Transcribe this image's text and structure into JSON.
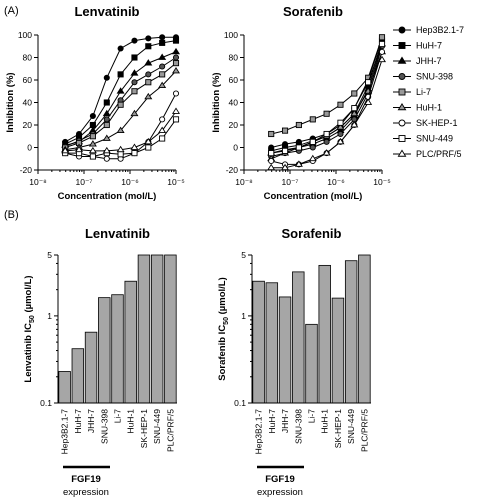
{
  "panels": {
    "a": "(A)",
    "b": "(B)"
  },
  "fgf19": {
    "label_line1": "FGF19",
    "label_line2": "expression"
  },
  "legend": {
    "items": [
      {
        "label": "Hep3B2.1-7",
        "marker": "circle",
        "fill": "#000000"
      },
      {
        "label": "HuH-7",
        "marker": "square",
        "fill": "#000000"
      },
      {
        "label": "JHH-7",
        "marker": "triangle",
        "fill": "#000000"
      },
      {
        "label": "SNU-398",
        "marker": "circle",
        "fill": "#555555"
      },
      {
        "label": "Li-7",
        "marker": "square",
        "fill": "#999999"
      },
      {
        "label": "HuH-1",
        "marker": "triangle",
        "fill": "#999999"
      },
      {
        "label": "SK-HEP-1",
        "marker": "circle",
        "fill": "#ffffff"
      },
      {
        "label": "SNU-449",
        "marker": "square",
        "fill": "#ffffff"
      },
      {
        "label": "PLC/PRF/5",
        "marker": "triangle",
        "fill": "#ffffff"
      }
    ]
  },
  "chart_data": [
    {
      "type": "line",
      "title": "Lenvatinib",
      "xlabel": "Concentration (mol/L)",
      "ylabel": "Inhibition (%)",
      "xscale": "log",
      "xlim": [
        1e-08,
        1e-05
      ],
      "ylim": [
        -20,
        100
      ],
      "xticks": [
        "10⁻⁸",
        "10⁻⁷",
        "10⁻⁶",
        "10⁻⁵"
      ],
      "yticks": [
        -20,
        0,
        20,
        40,
        60,
        80,
        100
      ],
      "x": [
        3.9e-08,
        7.8e-08,
        1.56e-07,
        3.13e-07,
        6.25e-07,
        1.25e-06,
        2.5e-06,
        5e-06,
        1e-05
      ],
      "series": [
        {
          "name": "Hep3B2.1-7",
          "values": [
            5,
            12,
            28,
            62,
            88,
            95,
            97,
            98,
            98
          ]
        },
        {
          "name": "HuH-7",
          "values": [
            3,
            9,
            20,
            40,
            65,
            80,
            90,
            93,
            95
          ]
        },
        {
          "name": "JHH-7",
          "values": [
            2,
            5,
            15,
            30,
            50,
            66,
            75,
            80,
            85
          ]
        },
        {
          "name": "SNU-398",
          "values": [
            1,
            6,
            12,
            25,
            42,
            58,
            65,
            72,
            80
          ]
        },
        {
          "name": "Li-7",
          "values": [
            0,
            4,
            10,
            20,
            38,
            50,
            58,
            65,
            75
          ]
        },
        {
          "name": "HuH-1",
          "values": [
            -2,
            0,
            3,
            8,
            15,
            30,
            45,
            55,
            68
          ]
        },
        {
          "name": "SK-HEP-1",
          "values": [
            -5,
            -8,
            -8,
            -10,
            -10,
            -5,
            5,
            25,
            48
          ]
        },
        {
          "name": "SNU-449",
          "values": [
            -5,
            -5,
            -8,
            -5,
            -6,
            -5,
            0,
            8,
            25
          ]
        },
        {
          "name": "PLC/PRF/5",
          "values": [
            -3,
            -2,
            -3,
            -3,
            -2,
            0,
            5,
            15,
            32
          ]
        }
      ]
    },
    {
      "type": "line",
      "title": "Sorafenib",
      "xlabel": "Concentration (mol/L)",
      "ylabel": "Inhibition (%)",
      "xscale": "log",
      "xlim": [
        1e-08,
        1e-05
      ],
      "ylim": [
        -20,
        100
      ],
      "xticks": [
        "10⁻⁸",
        "10⁻⁷",
        "10⁻⁶",
        "10⁻⁵"
      ],
      "yticks": [
        -20,
        0,
        20,
        40,
        60,
        80,
        100
      ],
      "x": [
        3.9e-08,
        7.8e-08,
        1.56e-07,
        3.13e-07,
        6.25e-07,
        1.25e-06,
        2.5e-06,
        5e-06,
        1e-05
      ],
      "series": [
        {
          "name": "Hep3B2.1-7",
          "values": [
            0,
            3,
            5,
            8,
            12,
            20,
            35,
            60,
            97
          ]
        },
        {
          "name": "HuH-7",
          "values": [
            -3,
            0,
            2,
            6,
            10,
            18,
            30,
            55,
            95
          ]
        },
        {
          "name": "JHH-7",
          "values": [
            -5,
            -2,
            0,
            3,
            8,
            15,
            28,
            52,
            92
          ]
        },
        {
          "name": "SNU-398",
          "values": [
            -8,
            -5,
            -3,
            0,
            5,
            12,
            25,
            48,
            90
          ]
        },
        {
          "name": "Li-7",
          "values": [
            12,
            15,
            20,
            25,
            30,
            38,
            48,
            62,
            98
          ]
        },
        {
          "name": "HuH-1",
          "values": [
            -10,
            -5,
            0,
            5,
            10,
            18,
            30,
            50,
            85
          ]
        },
        {
          "name": "SK-HEP-1",
          "values": [
            -12,
            -15,
            -15,
            -12,
            -5,
            5,
            20,
            45,
            85
          ]
        },
        {
          "name": "SNU-449",
          "values": [
            -5,
            -3,
            0,
            5,
            12,
            22,
            35,
            58,
            92
          ]
        },
        {
          "name": "PLC/PRF/5",
          "values": [
            -18,
            -18,
            -15,
            -10,
            -5,
            5,
            20,
            40,
            78
          ]
        }
      ]
    },
    {
      "type": "bar",
      "title": "Lenvatinib",
      "ylabel": "Lenvatinib IC",
      "ylabel_sub": "50",
      "ylabel_unit": " (µmol/L)",
      "yscale": "log",
      "ylim": [
        0.1,
        5
      ],
      "yticks": [
        "0.1",
        "1",
        "5"
      ],
      "yticks_values": [
        0.1,
        1,
        5
      ],
      "categories": [
        "Hep3B2.1-7",
        "HuH-7",
        "JHH-7",
        "SNU-398",
        "Li-7",
        "HuH-1",
        "SK-HEP-1",
        "SNU-449",
        "PLC/PRF/5"
      ],
      "values": [
        0.23,
        0.42,
        0.65,
        1.62,
        1.75,
        2.5,
        5,
        5,
        5
      ]
    },
    {
      "type": "bar",
      "title": "Sorafenib",
      "ylabel": "Sorafenib IC",
      "ylabel_sub": "50",
      "ylabel_unit": " (µmol/L)",
      "yscale": "log",
      "ylim": [
        0.1,
        5
      ],
      "yticks": [
        "0.1",
        "1",
        "5"
      ],
      "yticks_values": [
        0.1,
        1,
        5
      ],
      "categories": [
        "Hep3B2.1-7",
        "HuH-7",
        "JHH-7",
        "SNU-398",
        "Li-7",
        "HuH-1",
        "SK-HEP-1",
        "SNU-449",
        "PLC/PRF/5"
      ],
      "values": [
        2.5,
        2.4,
        1.65,
        3.2,
        0.8,
        3.8,
        1.6,
        4.3,
        5
      ]
    }
  ]
}
